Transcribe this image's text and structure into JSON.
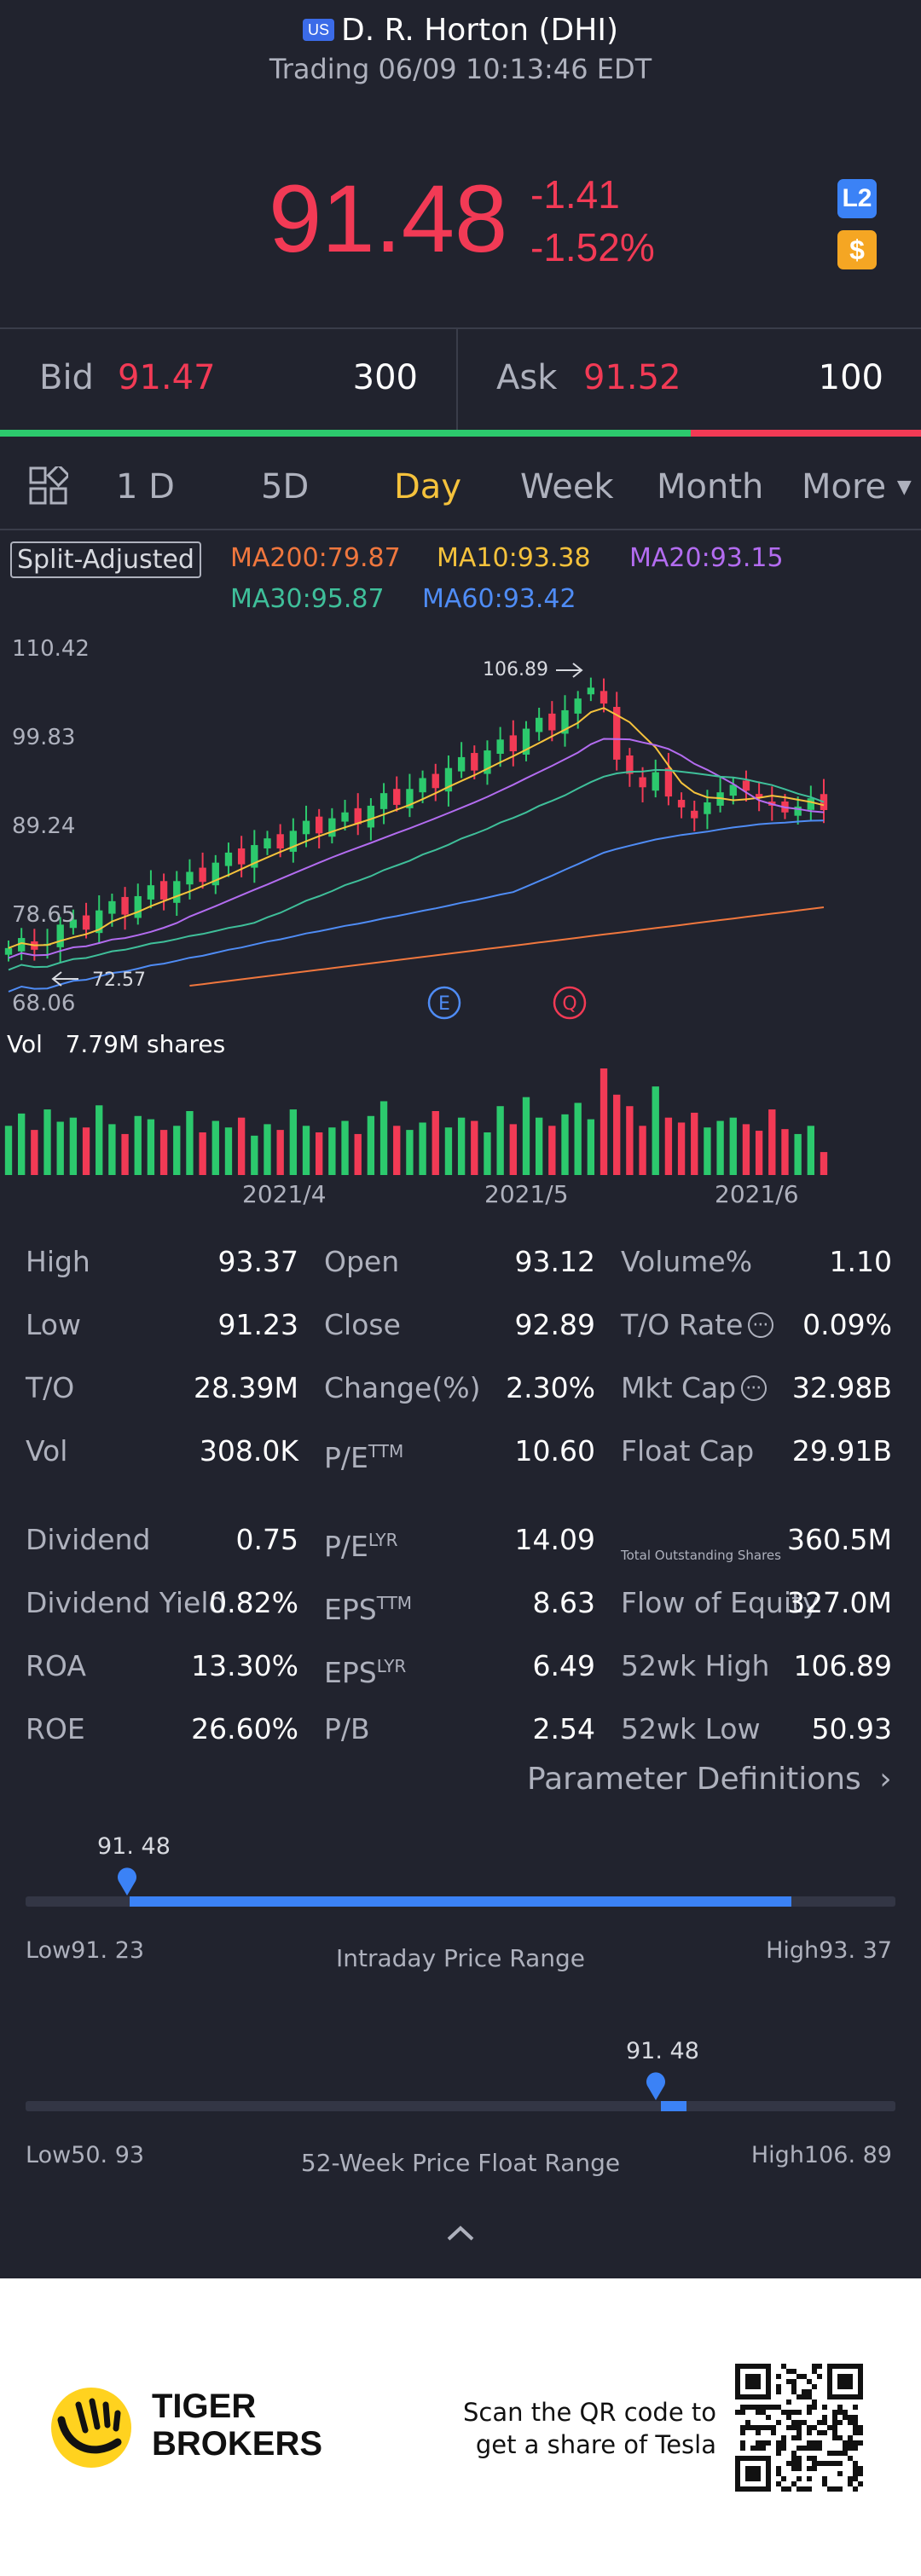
{
  "header": {
    "market_badge": "US",
    "title": "D. R.  Horton (DHI)",
    "status": "Trading 06/09 10:13:46 EDT"
  },
  "quote": {
    "price": "91.48",
    "change": "-1.41",
    "change_pct": "-1.52%",
    "level2_badge": "L2",
    "currency_badge": "$"
  },
  "bid_ask": {
    "bid_label": "Bid",
    "bid_price": "91.47",
    "bid_size": "300",
    "ask_label": "Ask",
    "ask_price": "91.52",
    "ask_size": "100",
    "bid_ratio": 0.75
  },
  "tabs": {
    "items": [
      "1 D",
      "5D",
      "Day",
      "Week",
      "Month",
      "More"
    ],
    "active": "Day"
  },
  "indicators": {
    "split": "Split-Adjusted",
    "ma200": "MA200:79.87",
    "ma10": "MA10:93.38",
    "ma20": "MA20:93.15",
    "ma30": "MA30:95.87",
    "ma60": "MA60:93.42",
    "colors": {
      "ma200": "#f0773e",
      "ma10": "#f5c23c",
      "ma20": "#b36cf0",
      "ma30": "#3fbf9a",
      "ma60": "#4f8cf5"
    }
  },
  "chart_data": {
    "type": "candlestick",
    "y_ticks": [
      "110.42",
      "99.83",
      "89.24",
      "78.65",
      "68.06"
    ],
    "ylim": [
      68.06,
      110.42
    ],
    "x_ticks": [
      "2021/4",
      "2021/5",
      "2021/6"
    ],
    "high_marker": "106.89",
    "low_marker": "72.57",
    "event_markers": [
      "E",
      "Q"
    ],
    "volume_label": "Vol",
    "volume_value": "7.79M shares",
    "closes": [
      75.0,
      76.2,
      74.8,
      75.5,
      77.8,
      78.4,
      77.2,
      79.5,
      80.6,
      79.0,
      81.2,
      82.5,
      80.8,
      83.0,
      84.1,
      82.9,
      85.2,
      86.4,
      85.0,
      87.3,
      88.1,
      86.9,
      89.0,
      90.2,
      88.7,
      90.5,
      91.2,
      89.8,
      92.0,
      93.5,
      92.1,
      94.0,
      95.3,
      94.1,
      96.5,
      97.8,
      96.2,
      98.6,
      99.9,
      98.5,
      101.2,
      102.5,
      101.0,
      103.4,
      104.8,
      106.1,
      104.2,
      97.5,
      95.8,
      94.2,
      96.0,
      93.1,
      91.8,
      90.5,
      92.4,
      93.6,
      94.5,
      93.8,
      92.9,
      92.0,
      91.2,
      91.9,
      92.89,
      91.48
    ],
    "volumes": [
      60,
      75,
      55,
      80,
      65,
      70,
      58,
      85,
      62,
      50,
      72,
      68,
      55,
      60,
      78,
      52,
      66,
      58,
      70,
      48,
      62,
      55,
      80,
      60,
      52,
      58,
      66,
      50,
      72,
      90,
      60,
      55,
      64,
      78,
      58,
      70,
      66,
      52,
      84,
      62,
      95,
      70,
      60,
      74,
      88,
      68,
      130,
      98,
      84,
      60,
      108,
      70,
      64,
      76,
      58,
      66,
      70,
      62,
      54,
      80,
      56,
      50,
      60,
      28
    ]
  },
  "stats": {
    "rows": [
      [
        {
          "l": "High",
          "v": "93.37"
        },
        {
          "l": "Open",
          "v": "93.12"
        },
        {
          "l": "Volume%",
          "v": "1.10"
        }
      ],
      [
        {
          "l": "Low",
          "v": "91.23"
        },
        {
          "l": "Close",
          "v": "92.89"
        },
        {
          "l": "T/O Rate",
          "v": "0.09%"
        }
      ],
      [
        {
          "l": "T/O",
          "v": "28.39M"
        },
        {
          "l": "Change(%)",
          "v": "2.30%"
        },
        {
          "l": "Mkt Cap",
          "v": "32.98B"
        }
      ],
      [
        {
          "l": "Vol",
          "v": "308.0K"
        },
        {
          "l": "P/E",
          "sup": "TTM",
          "v": "10.60"
        },
        {
          "l": "Float Cap",
          "v": "29.91B"
        }
      ],
      [
        {
          "l": "Dividend",
          "v": "0.75"
        },
        {
          "l": "P/E",
          "sup": "LYR",
          "v": "14.09"
        },
        {
          "l": "Total Outstanding Shares",
          "v": "360.5M"
        }
      ],
      [
        {
          "l": "Dividend Yield",
          "v": "0.82%"
        },
        {
          "l": "EPS",
          "sup": "TTM",
          "v": "8.63"
        },
        {
          "l": "Flow of Equity",
          "v": "327.0M"
        }
      ],
      [
        {
          "l": "ROA",
          "v": "13.30%"
        },
        {
          "l": "EPS",
          "sup": "LYR",
          "v": "6.49"
        },
        {
          "l": "52wk High",
          "v": "106.89"
        }
      ],
      [
        {
          "l": "ROE",
          "v": "26.60%"
        },
        {
          "l": "P/B",
          "v": "2.54"
        },
        {
          "l": "52wk Low",
          "v": "50.93"
        }
      ]
    ],
    "param_link": "Parameter Definitions"
  },
  "ranges": {
    "intraday": {
      "current": "91. 48",
      "low": "Low91. 23",
      "high": "High93. 37",
      "title": "Intraday Price Range",
      "position": 0.12,
      "fill_end": 0.88
    },
    "week52": {
      "current": "91. 48",
      "low": "Low50. 93",
      "high": "High106. 89",
      "title": "52-Week Price Float Range",
      "position": 0.73,
      "fill_end": 0.76
    }
  },
  "footer": {
    "brand_line1": "TIGER",
    "brand_line2": "BROKERS",
    "qr_line1": "Scan the QR code to",
    "qr_line2": "get a share of Tesla"
  }
}
